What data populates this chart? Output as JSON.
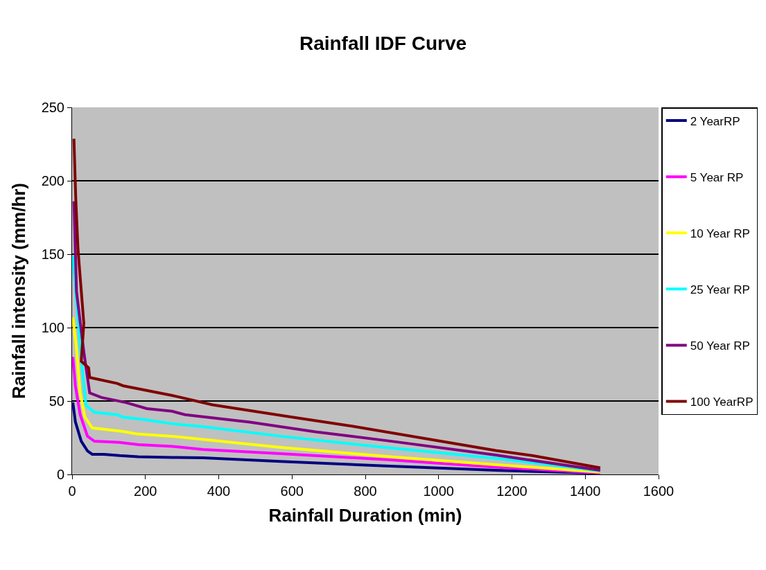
{
  "chart_data": {
    "type": "line",
    "title": "Rainfall IDF Curve",
    "xlabel": "Rainfall Duration (min)",
    "ylabel": "Rainfall intensity (mm/hr)",
    "xlim": [
      0,
      1600
    ],
    "xticks": [
      0,
      200,
      400,
      600,
      800,
      1000,
      1200,
      1400,
      1600
    ],
    "ylim": [
      0,
      250
    ],
    "yticks": [
      0,
      50,
      100,
      150,
      200,
      250
    ],
    "grid": "y",
    "legend": "right",
    "marker": "none",
    "line_style": "solid",
    "series": [
      {
        "name": "2 YearRP",
        "color": "#000080",
        "x": [
          2,
          9,
          25,
          42,
          55,
          87,
          129,
          181,
          273,
          357,
          569,
          868,
          1156,
          1441
        ],
        "values": [
          49,
          35.8,
          22.6,
          16,
          13.7,
          13.7,
          12.8,
          12,
          11.6,
          11.3,
          8.8,
          5.7,
          2.8,
          0.8
        ]
      },
      {
        "name": "5 Year RP",
        "color": "#ff00ff",
        "x": [
          2,
          9,
          22,
          42,
          61,
          129,
          181,
          273,
          357,
          569,
          868,
          1156,
          1441
        ],
        "values": [
          80,
          60.4,
          40.7,
          26,
          22.6,
          21.8,
          20.3,
          19.1,
          17,
          14.2,
          9.9,
          5,
          1
        ]
      },
      {
        "name": "10 Year RP",
        "color": "#ffff00",
        "x": [
          2,
          11,
          22,
          35,
          55,
          139,
          177,
          273,
          308,
          569,
          868,
          1156,
          1441
        ],
        "values": [
          107,
          88,
          55.5,
          39,
          31.7,
          29.2,
          27.6,
          26,
          25.1,
          18.4,
          12,
          6.6,
          1.5
        ]
      },
      {
        "name": "25 Year RP",
        "color": "#00ffff",
        "x": [
          2,
          11,
          25,
          38,
          61,
          123,
          139,
          197,
          273,
          357,
          569,
          868,
          1156,
          1441
        ],
        "values": [
          149,
          121,
          78.4,
          47,
          42.3,
          40.7,
          39,
          37.4,
          34.5,
          32.5,
          26,
          18,
          11,
          2.4
        ]
      },
      {
        "name": "50 Year RP",
        "color": "#800080",
        "x": [
          5,
          12,
          32,
          48,
          80,
          146,
          204,
          273,
          308,
          485,
          664,
          868,
          1156,
          1441
        ],
        "values": [
          186,
          124.5,
          83.5,
          55.5,
          52.4,
          49,
          44.8,
          43,
          40.7,
          35.6,
          29,
          22.7,
          13.2,
          2.8
        ]
      },
      {
        "name": "100 YearRP",
        "color": "#800000",
        "x": [
          5,
          10,
          16,
          19,
          32,
          25,
          45,
          48,
          123,
          139,
          273,
          383,
          600,
          766,
          1156,
          1258,
          1441
        ],
        "values": [
          228.6,
          188,
          154,
          144,
          103,
          77,
          72.6,
          66,
          62,
          60.4,
          53.8,
          47.4,
          39,
          32.8,
          16.3,
          12.7,
          4.5
        ]
      }
    ]
  }
}
